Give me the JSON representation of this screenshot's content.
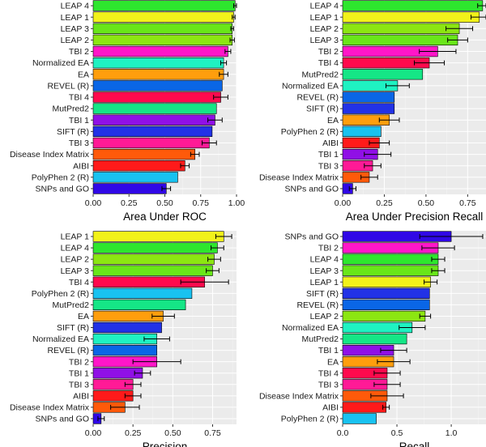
{
  "chart_data": [
    {
      "type": "bar",
      "orientation": "horizontal",
      "xlabel": "Area Under ROC",
      "xlim": [
        0,
        1.0
      ],
      "xticks": [
        "0.00",
        "0.25",
        "0.50",
        "0.75",
        "1.00"
      ],
      "xtick_values": [
        0,
        0.25,
        0.5,
        0.75,
        1.0
      ],
      "categories": [
        "LEAP 4",
        "LEAP 1",
        "LEAP 3",
        "LEAP 2",
        "TBI 2",
        "Normalized EA",
        "EA",
        "REVEL (R)",
        "TBI 4",
        "MutPred2",
        "TBI 1",
        "SIFT (R)",
        "TBI 3",
        "Disease Index Matrix",
        "AIBI",
        "PolyPhen 2 (R)",
        "SNPs and GO"
      ],
      "values": [
        0.99,
        0.98,
        0.97,
        0.97,
        0.94,
        0.91,
        0.91,
        0.9,
        0.89,
        0.86,
        0.85,
        0.83,
        0.81,
        0.71,
        0.64,
        0.59,
        0.51
      ],
      "errors": [
        0.01,
        0.01,
        0.01,
        0.015,
        0.02,
        0.02,
        0.03,
        0.0,
        0.05,
        0.0,
        0.05,
        0.0,
        0.05,
        0.03,
        0.03,
        0.0,
        0.03
      ],
      "colors": [
        "#2ee62e",
        "#f2f21a",
        "#69e619",
        "#8ce612",
        "#ff16c9",
        "#1ff2c2",
        "#ff9e0d",
        "#0a66e6",
        "#ff0a4d",
        "#15e686",
        "#9010e6",
        "#2232e6",
        "#ff1a96",
        "#ff5a0a",
        "#ff1a1a",
        "#19c2f0",
        "#3008e6"
      ]
    },
    {
      "type": "bar",
      "orientation": "horizontal",
      "xlabel": "Area Under Precision Recall",
      "xlim": [
        0,
        0.86
      ],
      "xticks": [
        "0.00",
        "0.25",
        "0.50",
        "0.75"
      ],
      "xtick_values": [
        0,
        0.25,
        0.5,
        0.75
      ],
      "categories": [
        "LEAP 4",
        "LEAP 1",
        "LEAP 2",
        "LEAP 3",
        "TBI 2",
        "TBI 4",
        "MutPred2",
        "Normalized EA",
        "REVEL (R)",
        "SIFT (R)",
        "EA",
        "PolyPhen 2 (R)",
        "AIBI",
        "TBI 1",
        "TBI 3",
        "Disease Index Matrix",
        "SNPs and GO"
      ],
      "values": [
        0.84,
        0.82,
        0.7,
        0.69,
        0.57,
        0.52,
        0.48,
        0.33,
        0.31,
        0.31,
        0.28,
        0.23,
        0.22,
        0.21,
        0.18,
        0.16,
        0.06
      ],
      "errors": [
        0.03,
        0.05,
        0.08,
        0.06,
        0.11,
        0.09,
        0.0,
        0.07,
        0.0,
        0.0,
        0.06,
        0.0,
        0.06,
        0.08,
        0.05,
        0.05,
        0.02
      ],
      "colors": [
        "#2ee62e",
        "#f2f21a",
        "#8ce612",
        "#69e619",
        "#ff16c9",
        "#ff0a4d",
        "#15e686",
        "#1ff2c2",
        "#0a66e6",
        "#2232e6",
        "#ff9e0d",
        "#19c2f0",
        "#ff1a1a",
        "#9010e6",
        "#ff1a96",
        "#ff5a0a",
        "#3008e6"
      ]
    },
    {
      "type": "bar",
      "orientation": "horizontal",
      "xlabel": "Precision",
      "xlim": [
        0,
        0.9
      ],
      "xticks": [
        "0.00",
        "0.25",
        "0.50",
        "0.75"
      ],
      "xtick_values": [
        0,
        0.25,
        0.5,
        0.75
      ],
      "categories": [
        "LEAP 1",
        "LEAP 4",
        "LEAP 2",
        "LEAP 3",
        "TBI 4",
        "PolyPhen 2 (R)",
        "MutPred2",
        "EA",
        "SIFT (R)",
        "Normalized EA",
        "REVEL (R)",
        "TBI 2",
        "TBI 1",
        "TBI 3",
        "AIBI",
        "Disease Index Matrix",
        "SNPs and GO"
      ],
      "values": [
        0.82,
        0.78,
        0.76,
        0.75,
        0.7,
        0.62,
        0.58,
        0.44,
        0.43,
        0.4,
        0.4,
        0.4,
        0.31,
        0.25,
        0.25,
        0.2,
        0.05
      ],
      "errors": [
        0.05,
        0.04,
        0.04,
        0.04,
        0.15,
        0.0,
        0.0,
        0.07,
        0.0,
        0.08,
        0.0,
        0.15,
        0.05,
        0.05,
        0.05,
        0.09,
        0.02
      ],
      "colors": [
        "#f2f21a",
        "#2ee62e",
        "#8ce612",
        "#69e619",
        "#ff0a4d",
        "#19c2f0",
        "#15e686",
        "#ff9e0d",
        "#2232e6",
        "#1ff2c2",
        "#0a66e6",
        "#ff16c9",
        "#9010e6",
        "#ff1a96",
        "#ff1a1a",
        "#ff5a0a",
        "#3008e6"
      ]
    },
    {
      "type": "bar",
      "orientation": "horizontal",
      "xlabel": "Recall",
      "xlim": [
        0,
        1.32
      ],
      "xticks": [
        "0.0",
        "0.5",
        "1.0"
      ],
      "xtick_values": [
        0,
        0.5,
        1.0
      ],
      "categories": [
        "SNPs and GO",
        "TBI 2",
        "LEAP 4",
        "LEAP 3",
        "LEAP 1",
        "SIFT (R)",
        "REVEL (R)",
        "LEAP 2",
        "Normalized EA",
        "MutPred2",
        "TBI 1",
        "EA",
        "TBI 4",
        "TBI 3",
        "Disease Index Matrix",
        "AIBI",
        "PolyPhen 2 (R)"
      ],
      "values": [
        1.0,
        0.88,
        0.88,
        0.88,
        0.81,
        0.8,
        0.8,
        0.76,
        0.64,
        0.59,
        0.47,
        0.47,
        0.41,
        0.41,
        0.41,
        0.4,
        0.31
      ],
      "errors": [
        0.29,
        0.15,
        0.06,
        0.06,
        0.06,
        0.0,
        0.0,
        0.05,
        0.12,
        0.0,
        0.12,
        0.15,
        0.12,
        0.12,
        0.15,
        0.03,
        0.0
      ],
      "colors": [
        "#3008e6",
        "#ff16c9",
        "#2ee62e",
        "#69e619",
        "#f2f21a",
        "#2232e6",
        "#0a66e6",
        "#8ce612",
        "#1ff2c2",
        "#15e686",
        "#9010e6",
        "#ff9e0d",
        "#ff0a4d",
        "#ff1a96",
        "#ff5a0a",
        "#ff1a1a",
        "#19c2f0"
      ]
    }
  ]
}
